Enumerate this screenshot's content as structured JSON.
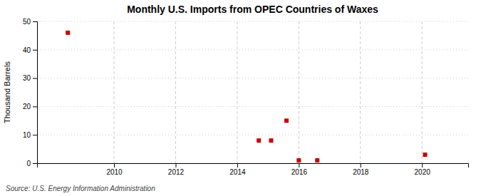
{
  "chart_data": {
    "type": "scatter",
    "title": "Monthly U.S. Imports from OPEC Countries of Waxes",
    "ylabel": "Thousand Barrels",
    "annotation": "Source: U.S. Energy Information Administration",
    "x": [
      2008.5,
      2014.7,
      2015.1,
      2015.6,
      2016.0,
      2016.6,
      2020.1
    ],
    "values": [
      46,
      8,
      8,
      15,
      1,
      1,
      3
    ],
    "color": "#cc0000",
    "marker": "square",
    "xlim": [
      2007.5,
      2021.5
    ],
    "ylim": [
      0,
      50
    ],
    "xticks": [
      2010,
      2012,
      2014,
      2016,
      2018,
      2020
    ],
    "yticks": [
      0,
      10,
      20,
      30,
      40,
      50
    ],
    "grid": true
  }
}
